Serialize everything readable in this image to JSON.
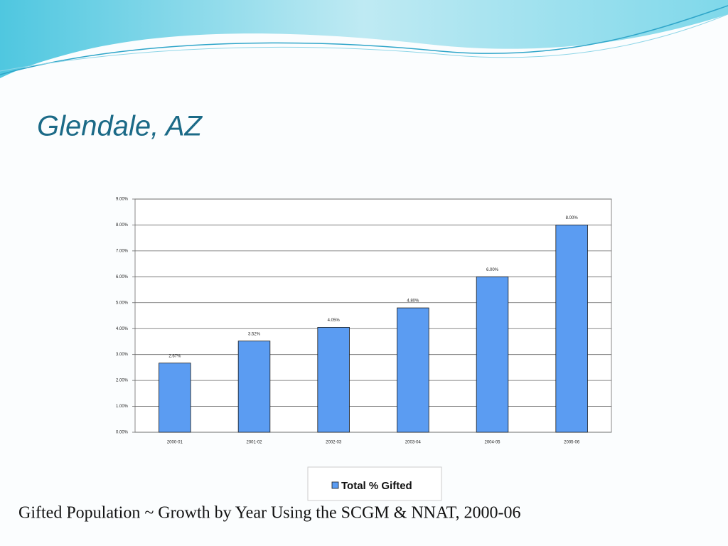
{
  "title": "Glendale, AZ",
  "caption": "Gifted Population ~ Growth by Year Using the SCGM & NNAT, 2000-06",
  "chart_data": {
    "type": "bar",
    "categories": [
      "2000-01",
      "2001-02",
      "2002-03",
      "2003-04",
      "2004-05",
      "2005-06"
    ],
    "series": [
      {
        "name": "Total % Gifted",
        "color": "#5b9cf2",
        "values": [
          2.67,
          3.52,
          4.05,
          4.8,
          6.0,
          8.0
        ],
        "value_labels": [
          "2.67%",
          "3.52%",
          "4.05%",
          "4.80%",
          "6.00%",
          "8.00%"
        ]
      }
    ],
    "ylim": [
      0,
      9
    ],
    "yticks": [
      {
        "value": 0,
        "label": "0.00%"
      },
      {
        "value": 1,
        "label": "1.00%"
      },
      {
        "value": 2,
        "label": "2.00%"
      },
      {
        "value": 3,
        "label": "3.00%"
      },
      {
        "value": 4,
        "label": "4.00%"
      },
      {
        "value": 5,
        "label": "5.00%"
      },
      {
        "value": 6,
        "label": "6.00%"
      },
      {
        "value": 7,
        "label": "7.00%"
      },
      {
        "value": 8,
        "label": "8.00%"
      },
      {
        "value": 9,
        "label": "9.00%"
      }
    ],
    "grid": true,
    "legend": "bottom"
  }
}
